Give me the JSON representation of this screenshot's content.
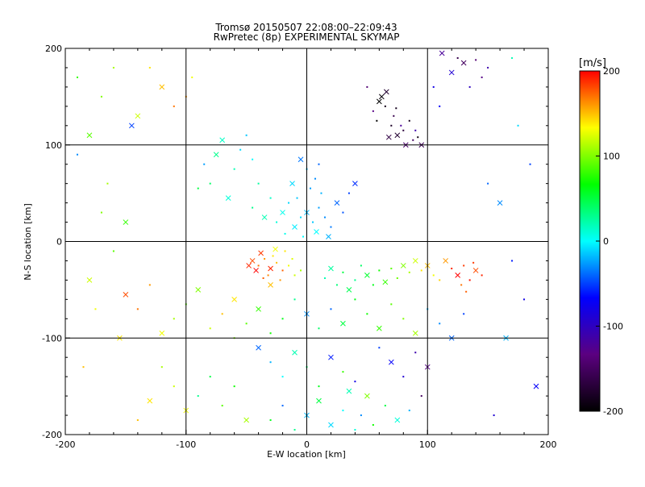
{
  "chart_data": {
    "type": "scatter",
    "title": "Tromsø 20150507 22:08:00–22:09:43",
    "subtitle": "RwPretec (8p) EXPERIMENTAL SKYMAP",
    "xlabel": "E-W location [km]",
    "ylabel": "N-S location [km]",
    "xlim": [
      -200,
      200
    ],
    "ylim": [
      -200,
      200
    ],
    "x_ticks": [
      "-200",
      "-100",
      "0",
      "100",
      "200"
    ],
    "y_ticks": [
      "-200",
      "-100",
      "0",
      "100",
      "200"
    ],
    "grid": true,
    "colorbar": {
      "label": "[m/s]",
      "min": -200,
      "max": 200,
      "ticks": [
        "200",
        "100",
        "0",
        "-100",
        "-200"
      ],
      "colors": [
        "#000000",
        "#5b0080",
        "#0000ff",
        "#00ffff",
        "#00ff00",
        "#ffff00",
        "#ff0000"
      ]
    },
    "markers": {
      "small": "dot",
      "large": "x"
    },
    "series": [
      {
        "values_desc": "velocity in m/s",
        "points": [
          [
            -45,
            -20,
            180
          ],
          [
            -40,
            -25,
            170
          ],
          [
            -35,
            -18,
            160
          ],
          [
            -30,
            -28,
            190
          ],
          [
            -25,
            -22,
            150
          ],
          [
            -20,
            -30,
            175
          ],
          [
            -38,
            -12,
            185
          ],
          [
            -32,
            -35,
            165
          ],
          [
            -28,
            -15,
            140
          ],
          [
            -42,
            -30,
            200
          ],
          [
            -15,
            -25,
            130
          ],
          [
            -10,
            -35,
            120
          ],
          [
            -48,
            -25,
            190
          ],
          [
            -22,
            -40,
            160
          ],
          [
            -5,
            -30,
            110
          ],
          [
            -30,
            -45,
            150
          ],
          [
            -18,
            -10,
            140
          ],
          [
            -36,
            -38,
            175
          ],
          [
            -26,
            -8,
            130
          ],
          [
            -12,
            -18,
            125
          ],
          [
            120,
            -28,
            190
          ],
          [
            125,
            -35,
            200
          ],
          [
            130,
            -25,
            185
          ],
          [
            135,
            -40,
            195
          ],
          [
            140,
            -30,
            180
          ],
          [
            128,
            -45,
            170
          ],
          [
            145,
            -35,
            190
          ],
          [
            115,
            -20,
            160
          ],
          [
            132,
            -52,
            175
          ],
          [
            138,
            -22,
            185
          ],
          [
            100,
            -25,
            150
          ],
          [
            95,
            -30,
            140
          ],
          [
            105,
            -35,
            130
          ],
          [
            90,
            -20,
            120
          ],
          [
            110,
            -40,
            145
          ],
          [
            85,
            -32,
            110
          ],
          [
            80,
            -25,
            100
          ],
          [
            75,
            -38,
            95
          ],
          [
            70,
            -28,
            90
          ],
          [
            65,
            -42,
            80
          ],
          [
            60,
            -30,
            70
          ],
          [
            55,
            -45,
            60
          ],
          [
            50,
            -35,
            55
          ],
          [
            45,
            -25,
            40
          ],
          [
            40,
            -40,
            30
          ],
          [
            35,
            -50,
            45
          ],
          [
            30,
            -32,
            50
          ],
          [
            25,
            -45,
            35
          ],
          [
            20,
            -28,
            25
          ],
          [
            15,
            -38,
            20
          ],
          [
            -5,
            25,
            -10
          ],
          [
            0,
            30,
            -20
          ],
          [
            5,
            20,
            -15
          ],
          [
            10,
            35,
            -25
          ],
          [
            -10,
            15,
            -5
          ],
          [
            15,
            25,
            -30
          ],
          [
            -15,
            40,
            -10
          ],
          [
            8,
            10,
            0
          ],
          [
            -8,
            45,
            -15
          ],
          [
            12,
            50,
            -20
          ],
          [
            -20,
            30,
            5
          ],
          [
            20,
            15,
            -35
          ],
          [
            -25,
            20,
            10
          ],
          [
            25,
            40,
            -40
          ],
          [
            3,
            55,
            -25
          ],
          [
            -3,
            5,
            0
          ],
          [
            18,
            5,
            -20
          ],
          [
            -18,
            8,
            5
          ],
          [
            7,
            65,
            -30
          ],
          [
            -12,
            60,
            -10
          ],
          [
            -30,
            45,
            15
          ],
          [
            30,
            30,
            -45
          ],
          [
            -35,
            25,
            20
          ],
          [
            35,
            50,
            -50
          ],
          [
            0,
            75,
            -20
          ],
          [
            -5,
            85,
            -35
          ],
          [
            10,
            80,
            -40
          ],
          [
            -40,
            60,
            25
          ],
          [
            40,
            60,
            -55
          ],
          [
            -45,
            35,
            30
          ],
          [
            -60,
            75,
            20
          ],
          [
            -75,
            90,
            30
          ],
          [
            -55,
            95,
            -10
          ],
          [
            -80,
            60,
            40
          ],
          [
            -65,
            45,
            10
          ],
          [
            -85,
            80,
            -25
          ],
          [
            -50,
            110,
            -15
          ],
          [
            -70,
            105,
            15
          ],
          [
            -90,
            55,
            50
          ],
          [
            -45,
            85,
            0
          ],
          [
            60,
            145,
            -200
          ],
          [
            65,
            140,
            -190
          ],
          [
            70,
            120,
            -180
          ],
          [
            75,
            110,
            -175
          ],
          [
            80,
            115,
            -170
          ],
          [
            85,
            125,
            -185
          ],
          [
            62,
            150,
            -195
          ],
          [
            72,
            130,
            -160
          ],
          [
            88,
            105,
            -150
          ],
          [
            95,
            100,
            -155
          ],
          [
            50,
            160,
            -140
          ],
          [
            55,
            135,
            -130
          ],
          [
            68,
            108,
            -165
          ],
          [
            78,
            120,
            -120
          ],
          [
            90,
            115,
            -110
          ],
          [
            82,
            100,
            -145
          ],
          [
            58,
            125,
            -200
          ],
          [
            74,
            138,
            -185
          ],
          [
            66,
            155,
            -175
          ],
          [
            92,
            108,
            -190
          ],
          [
            125,
            190,
            -160
          ],
          [
            130,
            185,
            -150
          ],
          [
            140,
            188,
            -140
          ],
          [
            145,
            170,
            -130
          ],
          [
            112,
            195,
            -120
          ],
          [
            150,
            180,
            -110
          ],
          [
            135,
            160,
            -100
          ],
          [
            120,
            175,
            -90
          ],
          [
            105,
            160,
            -80
          ],
          [
            110,
            140,
            -70
          ],
          [
            -40,
            -110,
            -40
          ],
          [
            -30,
            -125,
            -20
          ],
          [
            -20,
            -140,
            0
          ],
          [
            -10,
            -115,
            20
          ],
          [
            0,
            -130,
            40
          ],
          [
            10,
            -150,
            60
          ],
          [
            20,
            -120,
            -60
          ],
          [
            30,
            -135,
            80
          ],
          [
            40,
            -145,
            -80
          ],
          [
            50,
            -160,
            100
          ],
          [
            -60,
            -150,
            70
          ],
          [
            -70,
            -170,
            90
          ],
          [
            -50,
            -185,
            110
          ],
          [
            -80,
            -140,
            50
          ],
          [
            -90,
            -160,
            30
          ],
          [
            -100,
            -175,
            130
          ],
          [
            -110,
            -150,
            120
          ],
          [
            -120,
            -130,
            110
          ],
          [
            -130,
            -165,
            140
          ],
          [
            -140,
            -185,
            150
          ],
          [
            60,
            -110,
            -50
          ],
          [
            70,
            -125,
            -70
          ],
          [
            80,
            -140,
            -90
          ],
          [
            90,
            -115,
            -110
          ],
          [
            100,
            -130,
            -130
          ],
          [
            95,
            -160,
            -150
          ],
          [
            85,
            -175,
            -20
          ],
          [
            75,
            -185,
            10
          ],
          [
            65,
            -170,
            50
          ],
          [
            55,
            -190,
            70
          ],
          [
            -150,
            20,
            80
          ],
          [
            -160,
            -10,
            90
          ],
          [
            -170,
            30,
            100
          ],
          [
            -180,
            -40,
            120
          ],
          [
            -165,
            60,
            110
          ],
          [
            -175,
            -70,
            130
          ],
          [
            -155,
            -100,
            140
          ],
          [
            -185,
            -130,
            150
          ],
          [
            -190,
            90,
            -30
          ],
          [
            -145,
            120,
            -50
          ],
          [
            -100,
            150,
            160
          ],
          [
            -110,
            140,
            170
          ],
          [
            -120,
            160,
            150
          ],
          [
            -130,
            180,
            140
          ],
          [
            -95,
            170,
            130
          ],
          [
            -140,
            130,
            120
          ],
          [
            -160,
            180,
            110
          ],
          [
            -170,
            150,
            100
          ],
          [
            -180,
            110,
            90
          ],
          [
            -190,
            170,
            80
          ],
          [
            150,
            60,
            -40
          ],
          [
            160,
            40,
            -30
          ],
          [
            170,
            -20,
            -60
          ],
          [
            180,
            -60,
            -80
          ],
          [
            165,
            -100,
            -20
          ],
          [
            175,
            120,
            -10
          ],
          [
            185,
            80,
            -50
          ],
          [
            190,
            -150,
            -70
          ],
          [
            155,
            -180,
            -90
          ],
          [
            170,
            190,
            20
          ],
          [
            -60,
            -60,
            140
          ],
          [
            -70,
            -75,
            150
          ],
          [
            -80,
            -90,
            120
          ],
          [
            -90,
            -50,
            100
          ],
          [
            -100,
            -65,
            90
          ],
          [
            -110,
            -80,
            110
          ],
          [
            -120,
            -95,
            130
          ],
          [
            -130,
            -45,
            160
          ],
          [
            -140,
            -70,
            170
          ],
          [
            -150,
            -55,
            180
          ],
          [
            40,
            -60,
            60
          ],
          [
            50,
            -75,
            70
          ],
          [
            60,
            -90,
            80
          ],
          [
            70,
            -65,
            90
          ],
          [
            80,
            -80,
            100
          ],
          [
            90,
            -95,
            110
          ],
          [
            100,
            -70,
            -20
          ],
          [
            110,
            -85,
            -30
          ],
          [
            120,
            -100,
            -40
          ],
          [
            130,
            -75,
            -50
          ],
          [
            -10,
            -60,
            30
          ],
          [
            0,
            -75,
            -30
          ],
          [
            10,
            -90,
            40
          ],
          [
            20,
            -70,
            -40
          ],
          [
            30,
            -85,
            50
          ],
          [
            -20,
            -80,
            60
          ],
          [
            -30,
            -95,
            70
          ],
          [
            -40,
            -70,
            80
          ],
          [
            -50,
            -85,
            90
          ],
          [
            -60,
            -100,
            100
          ],
          [
            20,
            -190,
            -10
          ],
          [
            30,
            -175,
            0
          ],
          [
            40,
            -195,
            10
          ],
          [
            0,
            -180,
            -20
          ],
          [
            -10,
            -195,
            30
          ],
          [
            -20,
            -170,
            -40
          ],
          [
            10,
            -165,
            50
          ],
          [
            -30,
            -185,
            60
          ],
          [
            45,
            -180,
            -30
          ],
          [
            35,
            -155,
            20
          ]
        ]
      }
    ]
  }
}
